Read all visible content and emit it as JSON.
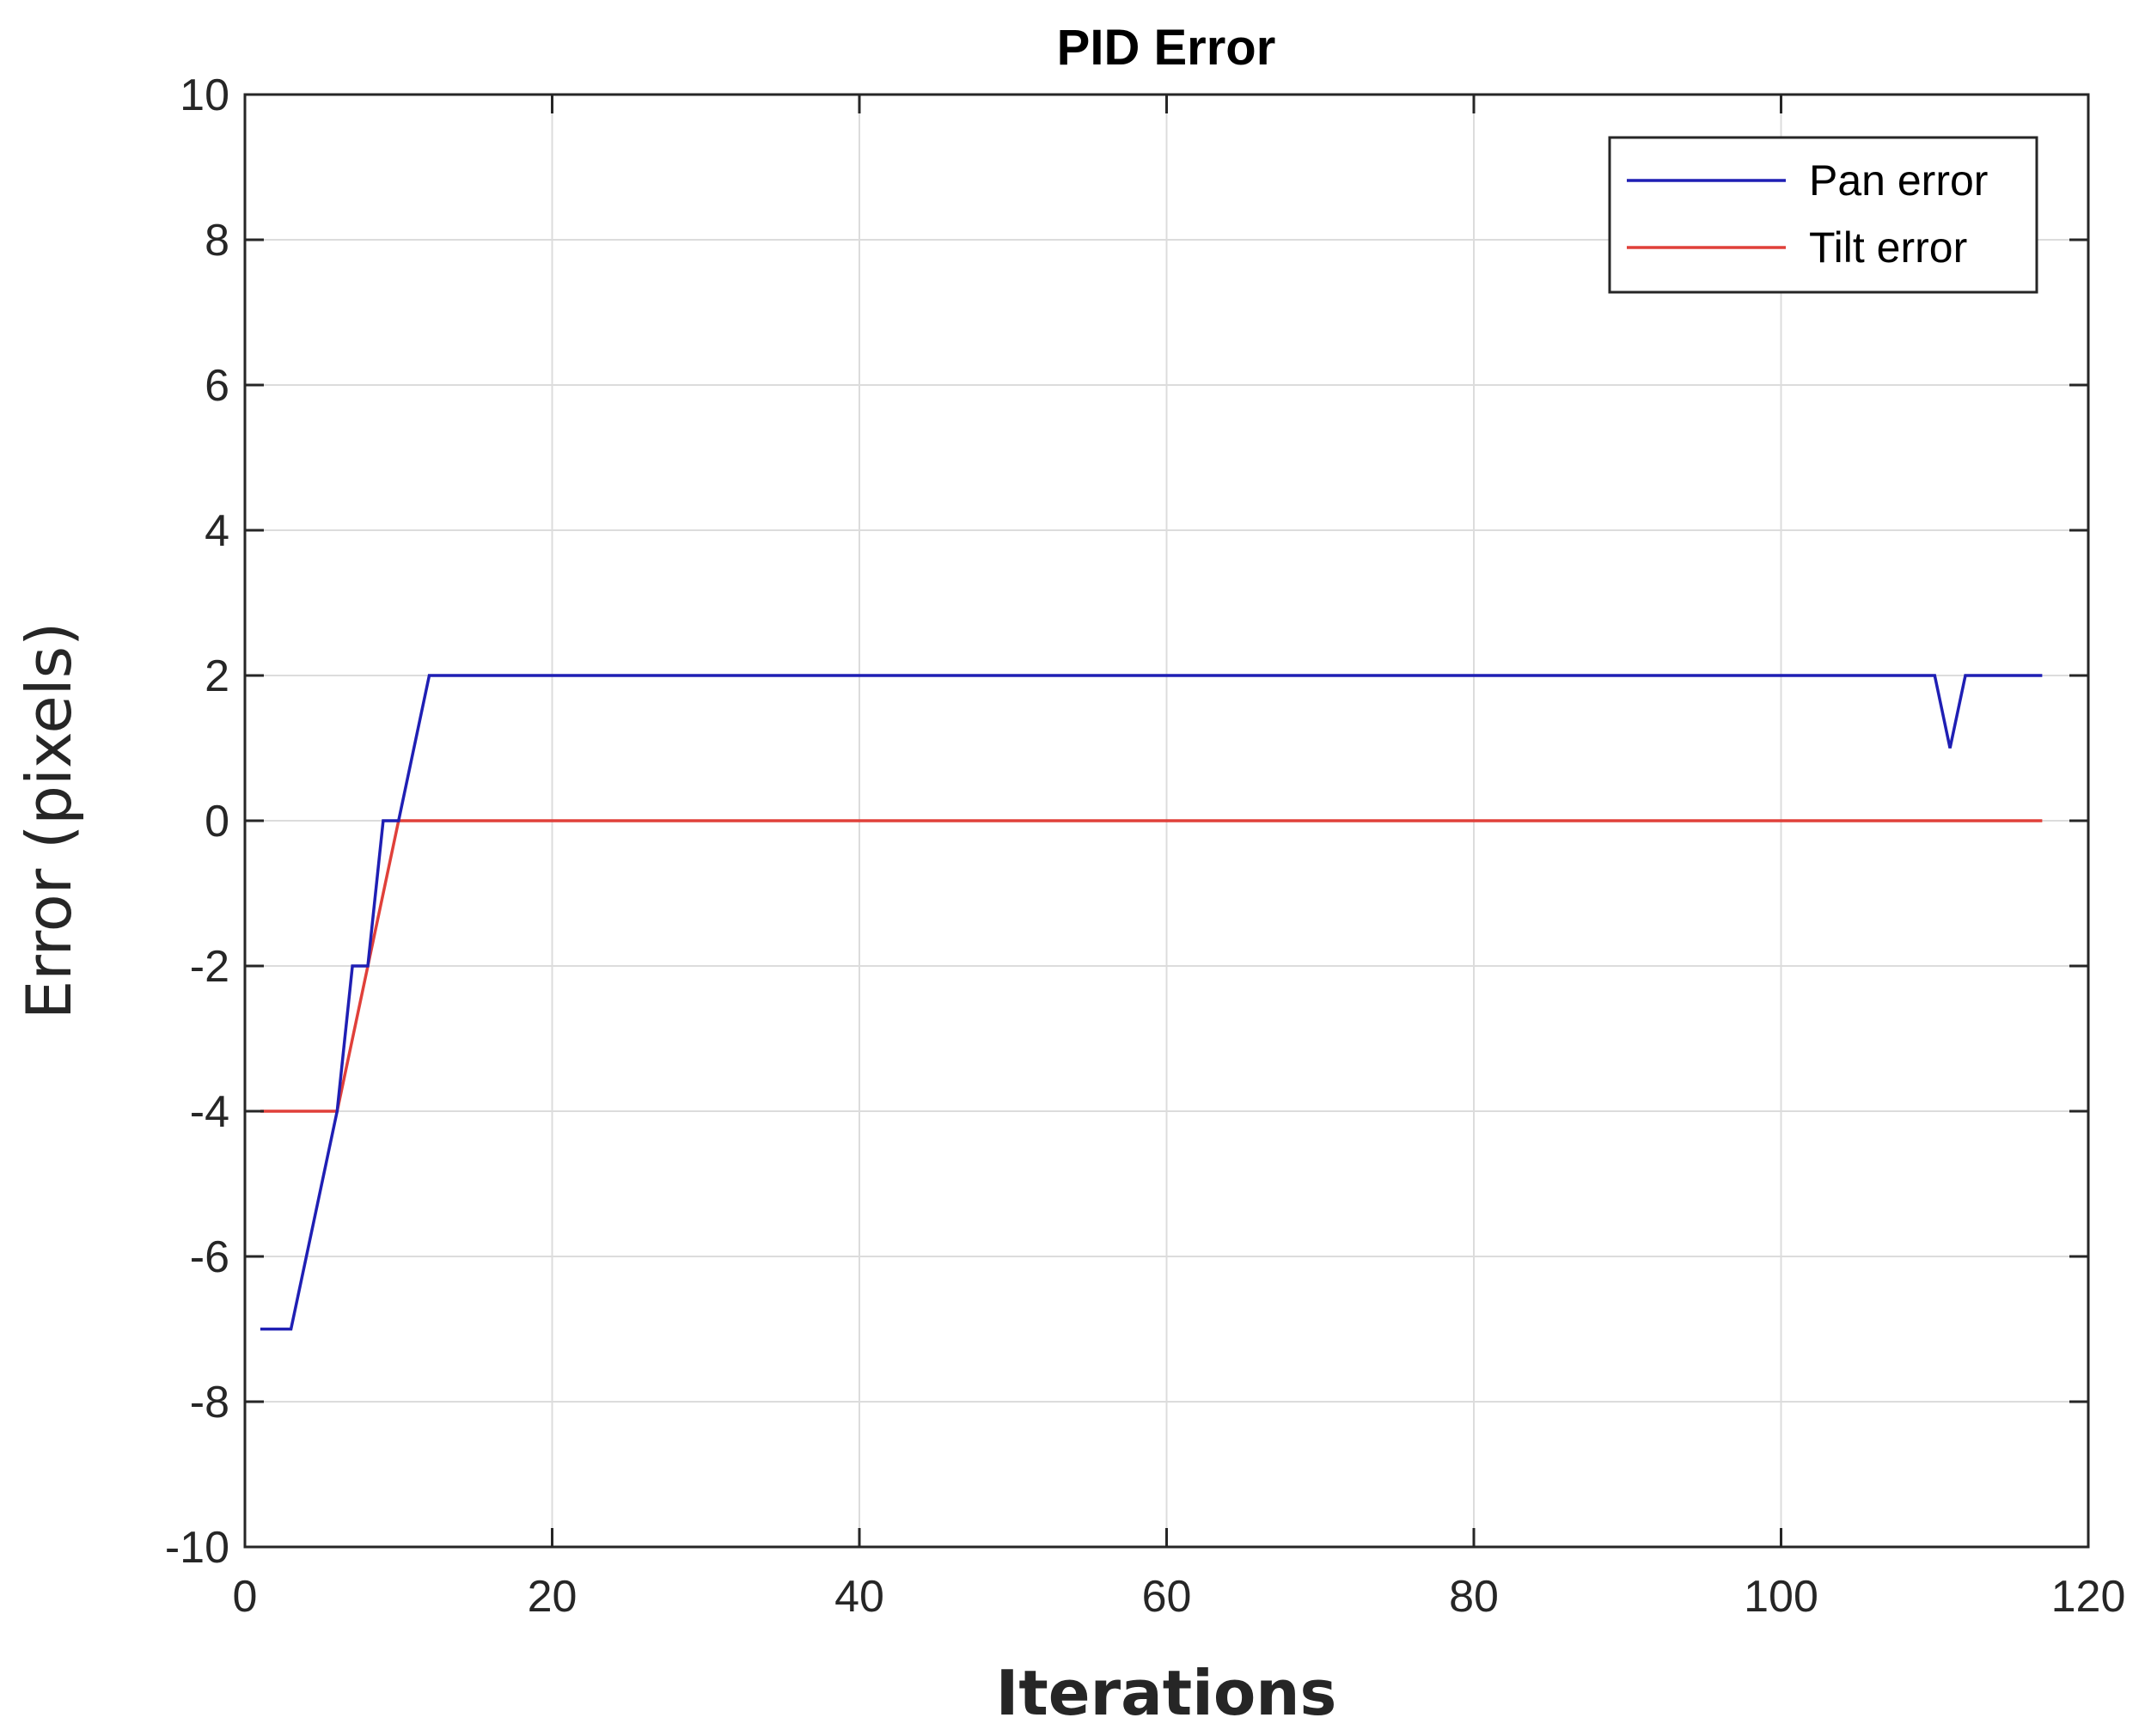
{
  "chart_data": {
    "type": "line",
    "title": "PID Error",
    "xlabel": "Iterations",
    "ylabel": "Error (pixels)",
    "xlim": [
      0,
      120
    ],
    "ylim": [
      -10,
      10
    ],
    "xticks": [
      0,
      20,
      40,
      60,
      80,
      100,
      120
    ],
    "yticks": [
      -10,
      -8,
      -6,
      -4,
      -2,
      0,
      2,
      4,
      6,
      8,
      10
    ],
    "xtick_labels": [
      "0",
      "20",
      "40",
      "60",
      "80",
      "100",
      "120"
    ],
    "ytick_labels": [
      "-10",
      "-8",
      "-6",
      "-4",
      "-2",
      "0",
      "2",
      "4",
      "6",
      "8",
      "10"
    ],
    "grid": true,
    "legend_position": "top-right",
    "series": [
      {
        "name": "Pan error",
        "color": "#1f1fb4",
        "x": [
          1,
          3,
          6,
          7,
          8,
          9,
          10,
          12,
          110,
          111,
          112,
          117
        ],
        "y": [
          -7,
          -7,
          -4,
          -2,
          -2,
          0,
          0,
          2,
          2,
          1,
          2,
          2
        ]
      },
      {
        "name": "Tilt error",
        "color": "#e0403a",
        "x": [
          1,
          6,
          10,
          117
        ],
        "y": [
          -4,
          -4,
          0,
          0
        ]
      }
    ]
  }
}
